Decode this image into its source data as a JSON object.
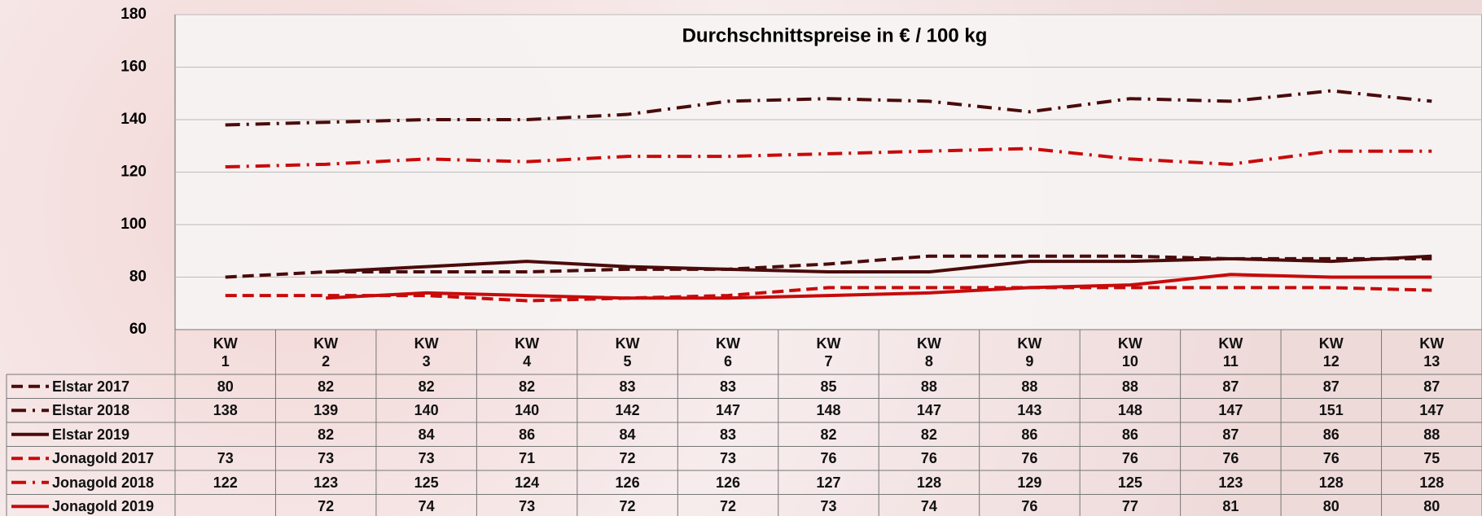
{
  "chart_data": {
    "type": "line",
    "title": "Durchschnittspreise in € / 100 kg",
    "categories": [
      "KW\n1",
      "KW\n2",
      "KW\n3",
      "KW\n4",
      "KW\n5",
      "KW\n6",
      "KW\n7",
      "KW\n8",
      "KW\n9",
      "KW\n10",
      "KW\n11",
      "KW\n12",
      "KW\n13"
    ],
    "series": [
      {
        "name": "Elstar 2017",
        "color": "#4a0b0b",
        "dash": "dashed",
        "values": [
          80,
          82,
          82,
          82,
          83,
          83,
          85,
          88,
          88,
          88,
          87,
          87,
          87
        ]
      },
      {
        "name": "Elstar 2018",
        "color": "#4a0b0b",
        "dash": "dashdot",
        "values": [
          138,
          139,
          140,
          140,
          142,
          147,
          148,
          147,
          143,
          148,
          147,
          151,
          147
        ]
      },
      {
        "name": "Elstar 2019",
        "color": "#4a0b0b",
        "dash": "solid",
        "values": [
          null,
          82,
          84,
          86,
          84,
          83,
          82,
          82,
          86,
          86,
          87,
          86,
          88
        ]
      },
      {
        "name": "Jonagold 2017",
        "color": "#c80a0a",
        "dash": "dashed",
        "values": [
          73,
          73,
          73,
          71,
          72,
          73,
          76,
          76,
          76,
          76,
          76,
          76,
          75
        ]
      },
      {
        "name": "Jonagold 2018",
        "color": "#c80a0a",
        "dash": "dashdot",
        "values": [
          122,
          123,
          125,
          124,
          126,
          126,
          127,
          128,
          129,
          125,
          123,
          128,
          128
        ]
      },
      {
        "name": "Jonagold 2019",
        "color": "#c80a0a",
        "dash": "solid",
        "values": [
          null,
          72,
          74,
          73,
          72,
          72,
          73,
          74,
          76,
          77,
          81,
          80,
          80
        ]
      }
    ],
    "ylim": [
      60,
      180
    ],
    "yticks": [
      60,
      80,
      100,
      120,
      140,
      160,
      180
    ],
    "grid": true
  }
}
